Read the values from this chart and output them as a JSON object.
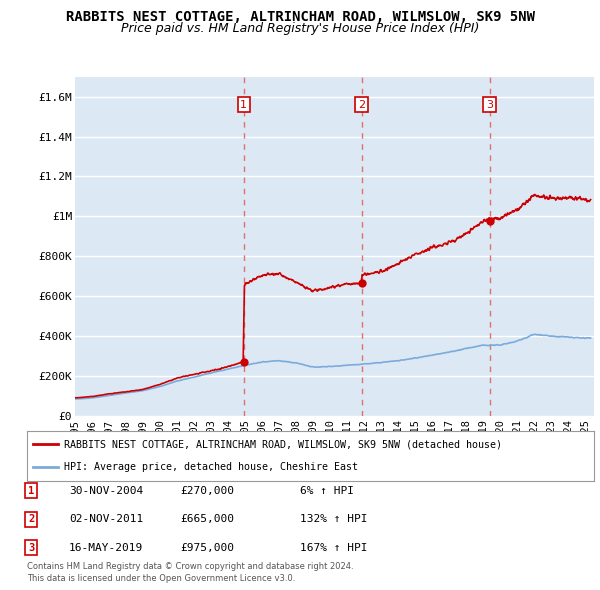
{
  "title": "RABBITS NEST COTTAGE, ALTRINCHAM ROAD, WILMSLOW, SK9 5NW",
  "subtitle": "Price paid vs. HM Land Registry's House Price Index (HPI)",
  "title_fontsize": 10,
  "subtitle_fontsize": 9,
  "background_color": "#ffffff",
  "plot_bg_color": "#dce9f5",
  "grid_color": "#ffffff",
  "ylim": [
    0,
    1700000
  ],
  "xlim_start": 1995.0,
  "xlim_end": 2025.5,
  "yticks": [
    0,
    200000,
    400000,
    600000,
    800000,
    1000000,
    1200000,
    1400000,
    1600000
  ],
  "ytick_labels": [
    "£0",
    "£200K",
    "£400K",
    "£600K",
    "£800K",
    "£1M",
    "£1.2M",
    "£1.4M",
    "£1.6M"
  ],
  "sales": [
    {
      "num": 1,
      "date": "30-NOV-2004",
      "price": 270000,
      "year": 2004.92,
      "label": "£270,000",
      "pct": "6%"
    },
    {
      "num": 2,
      "date": "02-NOV-2011",
      "price": 665000,
      "year": 2011.84,
      "label": "£665,000",
      "pct": "132%"
    },
    {
      "num": 3,
      "date": "16-MAY-2019",
      "price": 975000,
      "year": 2019.37,
      "label": "£975,000",
      "pct": "167%"
    }
  ],
  "sale_vline_color": "#e07070",
  "sale_dot_color": "#cc0000",
  "property_line_color": "#cc0000",
  "hpi_line_color": "#7aabdb",
  "legend_property_label": "RABBITS NEST COTTAGE, ALTRINCHAM ROAD, WILMSLOW, SK9 5NW (detached house)",
  "legend_hpi_label": "HPI: Average price, detached house, Cheshire East",
  "footer_line1": "Contains HM Land Registry data © Crown copyright and database right 2024.",
  "footer_line2": "This data is licensed under the Open Government Licence v3.0.",
  "xtick_years": [
    1995,
    1996,
    1997,
    1998,
    1999,
    2000,
    2001,
    2002,
    2003,
    2004,
    2005,
    2006,
    2007,
    2008,
    2009,
    2010,
    2011,
    2012,
    2013,
    2014,
    2015,
    2016,
    2017,
    2018,
    2019,
    2020,
    2021,
    2022,
    2023,
    2024,
    2025
  ],
  "hpi_years": [
    1995.0,
    1995.5,
    1996.0,
    1996.5,
    1997.0,
    1997.5,
    1998.0,
    1998.5,
    1999.0,
    1999.5,
    2000.0,
    2000.5,
    2001.0,
    2001.5,
    2002.0,
    2002.5,
    2003.0,
    2003.5,
    2004.0,
    2004.5,
    2005.0,
    2005.5,
    2006.0,
    2006.5,
    2007.0,
    2007.5,
    2008.0,
    2008.5,
    2009.0,
    2009.5,
    2010.0,
    2010.5,
    2011.0,
    2011.5,
    2012.0,
    2012.5,
    2013.0,
    2013.5,
    2014.0,
    2014.5,
    2015.0,
    2015.5,
    2016.0,
    2016.5,
    2017.0,
    2017.5,
    2018.0,
    2018.5,
    2019.0,
    2019.5,
    2020.0,
    2020.5,
    2021.0,
    2021.5,
    2022.0,
    2022.5,
    2023.0,
    2023.5,
    2024.0,
    2024.5,
    2025.0
  ],
  "hpi_vals": [
    85000,
    87000,
    90000,
    96000,
    103000,
    109000,
    115000,
    121000,
    127000,
    137000,
    148000,
    161000,
    175000,
    185000,
    195000,
    205000,
    215000,
    225000,
    235000,
    245000,
    255000,
    262000,
    270000,
    274000,
    278000,
    271000,
    265000,
    255000,
    245000,
    246000,
    248000,
    251000,
    255000,
    257000,
    260000,
    264000,
    268000,
    273000,
    278000,
    284000,
    290000,
    297000,
    305000,
    312000,
    320000,
    329000,
    338000,
    346000,
    355000,
    355000,
    355000,
    365000,
    375000,
    392000,
    410000,
    405000,
    400000,
    397000,
    395000,
    392000,
    390000
  ]
}
